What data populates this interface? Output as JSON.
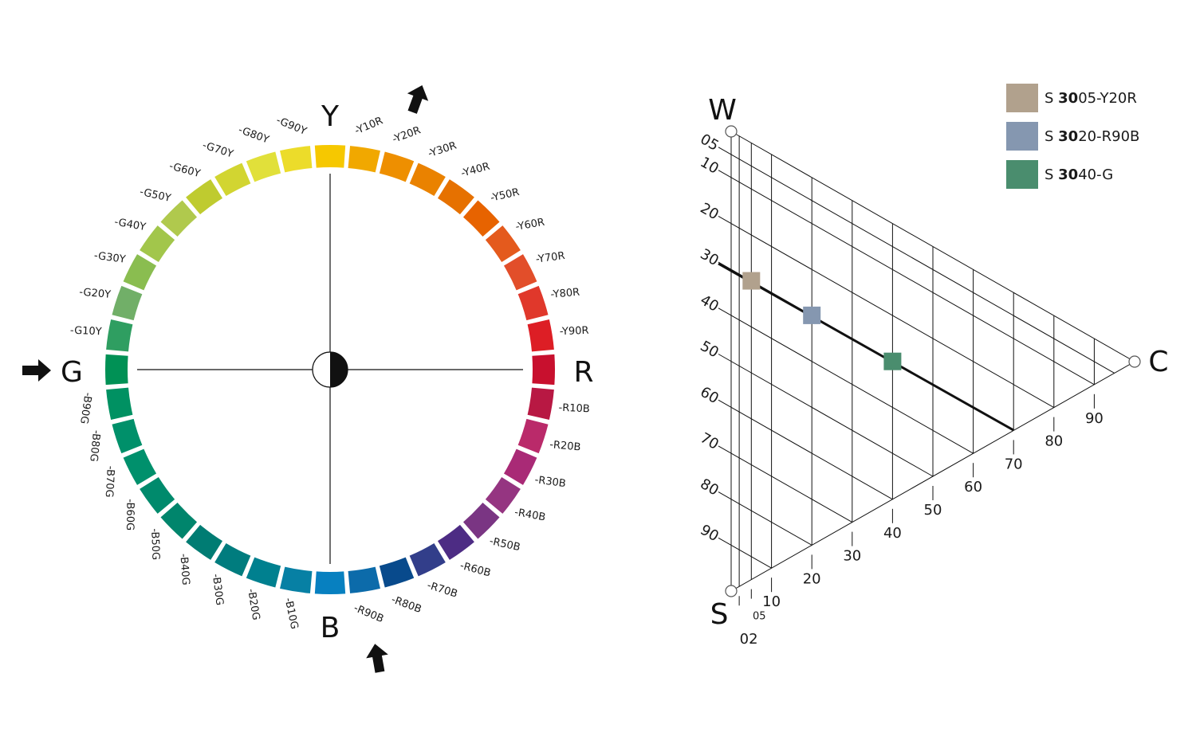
{
  "hue_circle": {
    "center_labels": {
      "top": "Y",
      "right": "R",
      "bottom": "B",
      "left": "G"
    },
    "segments": [
      {
        "label": "",
        "color": "#F6C800"
      },
      {
        "label": "-Y10R",
        "color": "#F1A800"
      },
      {
        "label": "-Y20R",
        "color": "#EE8F00"
      },
      {
        "label": "-Y30R",
        "color": "#EA8200"
      },
      {
        "label": "-Y40R",
        "color": "#E67100"
      },
      {
        "label": "-Y50R",
        "color": "#E76300"
      },
      {
        "label": "-Y60R",
        "color": "#E45A1D"
      },
      {
        "label": "-Y70R",
        "color": "#E24E2A"
      },
      {
        "label": "-Y80R",
        "color": "#E0382B"
      },
      {
        "label": "-Y90R",
        "color": "#DD1E25"
      },
      {
        "label": "",
        "color": "#C8102E"
      },
      {
        "label": "-R10B",
        "color": "#B81843"
      },
      {
        "label": "-R20B",
        "color": "#BA2A6A"
      },
      {
        "label": "-R30B",
        "color": "#A92A76"
      },
      {
        "label": "-R40B",
        "color": "#953581"
      },
      {
        "label": "-R50B",
        "color": "#7A3583"
      },
      {
        "label": "-R60B",
        "color": "#4D2C84"
      },
      {
        "label": "-R70B",
        "color": "#323E8A"
      },
      {
        "label": "-R80B",
        "color": "#084A8C"
      },
      {
        "label": "-R90B",
        "color": "#0C6BAA"
      },
      {
        "label": "",
        "color": "#0780C0"
      },
      {
        "label": "-B10G",
        "color": "#0780A4"
      },
      {
        "label": "-B20G",
        "color": "#00808F"
      },
      {
        "label": "-B30G",
        "color": "#007C7E"
      },
      {
        "label": "-B40G",
        "color": "#007C73"
      },
      {
        "label": "-B50G",
        "color": "#00856C"
      },
      {
        "label": "-B60G",
        "color": "#008A6C"
      },
      {
        "label": "-B70G",
        "color": "#00906C"
      },
      {
        "label": "-B80G",
        "color": "#00906A"
      },
      {
        "label": "-B90G",
        "color": "#009162"
      },
      {
        "label": "",
        "color": "#009155"
      },
      {
        "label": "-G10Y",
        "color": "#2F9E61"
      },
      {
        "label": "-G20Y",
        "color": "#71AF68"
      },
      {
        "label": "-G30Y",
        "color": "#8ABD50"
      },
      {
        "label": "-G40Y",
        "color": "#A2C64B"
      },
      {
        "label": "-G50Y",
        "color": "#B0C94D"
      },
      {
        "label": "-G60Y",
        "color": "#BFCB2F"
      },
      {
        "label": "-G70Y",
        "color": "#D2D531"
      },
      {
        "label": "-G80Y",
        "color": "#E1E03A"
      },
      {
        "label": "-G90Y",
        "color": "#ECDC2A"
      }
    ],
    "arrow_markers": [
      "Y20R",
      "G",
      "R90B"
    ]
  },
  "triangle": {
    "vertices": {
      "white": "W",
      "chromatic": "C",
      "black": "S"
    },
    "blackness_ticks": [
      "05",
      "10",
      "20",
      "30",
      "40",
      "50",
      "60",
      "70",
      "80",
      "90"
    ],
    "chromaticness_ticks": [
      "02",
      "05",
      "10",
      "20",
      "30",
      "40",
      "50",
      "60",
      "70",
      "80",
      "90"
    ],
    "highlighted_blackness": 30,
    "samples": [
      {
        "notation_prefix": "S ",
        "notation_bold": "30",
        "notation_suffix": "05-Y20R",
        "blackness": 30,
        "chromaticness": 5,
        "color": "#B1A18D"
      },
      {
        "notation_prefix": "S ",
        "notation_bold": "30",
        "notation_suffix": "20-R90B",
        "blackness": 30,
        "chromaticness": 20,
        "color": "#8597B0"
      },
      {
        "notation_prefix": "S ",
        "notation_bold": "30",
        "notation_suffix": "40-G",
        "blackness": 30,
        "chromaticness": 40,
        "color": "#4A8D6E"
      }
    ]
  }
}
